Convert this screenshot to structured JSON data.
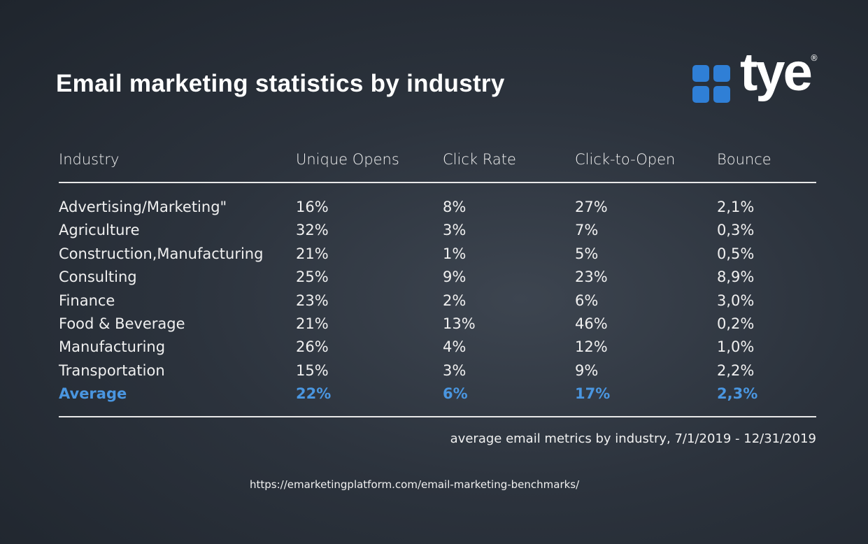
{
  "header": {
    "title": "Email marketing statistics by industry",
    "logo": {
      "text": "tye",
      "mark": "®"
    }
  },
  "table": {
    "columns": [
      "Industry",
      "Unique Opens",
      "Click Rate",
      "Click-to-Open",
      "Bounce"
    ],
    "rows": [
      [
        "Advertising/Marketing\"",
        "16%",
        "8%",
        "27%",
        "2,1%"
      ],
      [
        "Agriculture",
        "32%",
        "3%",
        "7%",
        "0,3%"
      ],
      [
        "Construction,Manufacturing",
        "21%",
        "1%",
        "5%",
        "0,5%"
      ],
      [
        "Consulting",
        "25%",
        "9%",
        "23%",
        "8,9%"
      ],
      [
        "Finance",
        "23%",
        "2%",
        "6%",
        "3,0%"
      ],
      [
        "Food & Beverage",
        "21%",
        "13%",
        "46%",
        "0,2%"
      ],
      [
        "Manufacturing",
        "26%",
        "4%",
        "12%",
        "1,0%"
      ],
      [
        "Transportation",
        "15%",
        "3%",
        "9%",
        "2,2%"
      ]
    ],
    "average": [
      "Average",
      "22%",
      "6%",
      "17%",
      "2,3%"
    ]
  },
  "footnote": "average email metrics by industry, 7/1/2019 - 12/31/2019",
  "source": "https://emarketingplatform.com/email-marketing-benchmarks/"
}
